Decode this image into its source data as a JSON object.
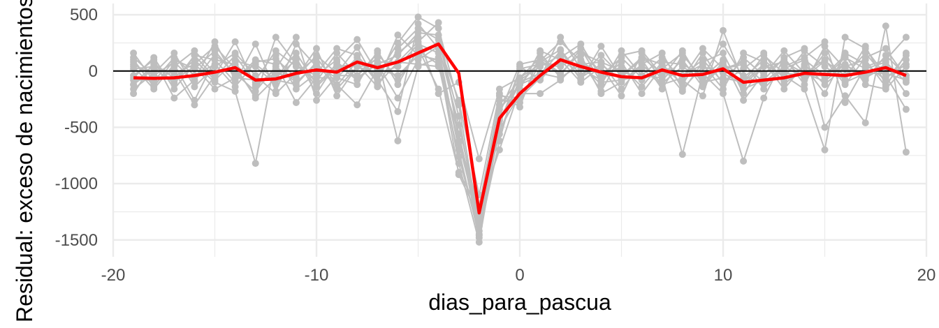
{
  "chart_data": {
    "type": "line",
    "xlabel": "dias_para_pascua",
    "ylabel": "Residual: exceso de nacimientos",
    "xlim": [
      -20,
      20
    ],
    "ylim": [
      -1650,
      600
    ],
    "x_ticks": [
      -20,
      -10,
      0,
      10,
      20
    ],
    "x_tick_labels": [
      "-20",
      "-10",
      "0",
      "10",
      "20"
    ],
    "y_ticks": [
      500,
      0,
      -500,
      -1000,
      -1500
    ],
    "y_tick_labels": [
      "500",
      "0",
      "-500",
      "-1000",
      "-1500"
    ],
    "grid": true,
    "reference_line_y": 0,
    "colors": {
      "background": "#ffffff",
      "grid": "#ebebeb",
      "years": "#bebebe",
      "mean": "#ff0000",
      "zero_line": "#000000"
    },
    "x": [
      -19,
      -18,
      -17,
      -16,
      -15,
      -14,
      -13,
      -12,
      -11,
      -10,
      -9,
      -8,
      -7,
      -6,
      -5,
      -4,
      -3,
      -2,
      -1,
      0,
      1,
      2,
      3,
      4,
      5,
      6,
      7,
      8,
      9,
      10,
      11,
      12,
      13,
      14,
      15,
      16,
      17,
      18,
      19
    ],
    "series": [
      {
        "style": "year",
        "values": [
          60,
          -40,
          80,
          -90,
          150,
          -20,
          -180,
          40,
          -100,
          60,
          -130,
          90,
          -40,
          250,
          480,
          380,
          -300,
          -1380,
          -420,
          -120,
          90,
          260,
          90,
          -40,
          120,
          -60,
          40,
          -180,
          80,
          160,
          -200,
          60,
          -90,
          40,
          -60,
          120,
          20,
          80,
          -100
        ]
      },
      {
        "style": "year",
        "values": [
          -120,
          60,
          -60,
          100,
          -80,
          90,
          40,
          -120,
          120,
          -200,
          80,
          -60,
          60,
          -240,
          100,
          220,
          -480,
          -1280,
          -560,
          -60,
          120,
          -20,
          160,
          80,
          -160,
          60,
          -110,
          40,
          -80,
          20,
          80,
          -160,
          40,
          -60,
          90,
          -40,
          160,
          -60,
          60
        ]
      },
      {
        "style": "year",
        "values": [
          160,
          -90,
          120,
          -40,
          60,
          -140,
          80,
          110,
          -60,
          140,
          -20,
          210,
          -120,
          80,
          260,
          430,
          -620,
          -1200,
          -260,
          -280,
          80,
          190,
          -40,
          140,
          -40,
          120,
          60,
          -120,
          160,
          -120,
          120,
          -40,
          180,
          -20,
          -90,
          60,
          -80,
          140,
          -40
        ]
      },
      {
        "style": "year",
        "values": [
          -60,
          120,
          -160,
          60,
          220,
          20,
          -220,
          300,
          60,
          -90,
          160,
          -40,
          160,
          -80,
          180,
          60,
          -760,
          -1450,
          -620,
          40,
          -80,
          120,
          240,
          -60,
          40,
          -140,
          80,
          60,
          -40,
          240,
          -60,
          100,
          -60,
          180,
          40,
          -80,
          220,
          -120,
          100
        ]
      },
      {
        "style": "year",
        "values": [
          40,
          -160,
          60,
          -260,
          100,
          -100,
          240,
          -180,
          240,
          40,
          -60,
          120,
          -100,
          320,
          140,
          240,
          -260,
          -1100,
          -200,
          -320,
          160,
          -60,
          60,
          -120,
          180,
          -40,
          -60,
          180,
          -120,
          80,
          -160,
          -80,
          120,
          -120,
          220,
          20,
          -40,
          60,
          -200
        ]
      },
      {
        "style": "year",
        "values": [
          -200,
          80,
          -120,
          140,
          -60,
          140,
          -120,
          -20,
          -60,
          200,
          -220,
          40,
          60,
          140,
          340,
          320,
          -560,
          -1330,
          -340,
          -120,
          -40,
          180,
          -80,
          220,
          -60,
          120,
          -20,
          -40,
          100,
          -100,
          20,
          160,
          -120,
          40,
          -200,
          160,
          60,
          -80,
          140
        ]
      },
      {
        "style": "year",
        "values": [
          120,
          -40,
          -80,
          40,
          -160,
          -60,
          -80,
          180,
          40,
          -40,
          100,
          280,
          -20,
          40,
          240,
          160,
          -820,
          -1520,
          -480,
          20,
          60,
          40,
          140,
          -200,
          -100,
          60,
          160,
          -160,
          40,
          -20,
          -120,
          40,
          80,
          -20,
          100,
          -120,
          120,
          200,
          -60
        ]
      },
      {
        "style": "year",
        "values": [
          -40,
          100,
          -240,
          -80,
          260,
          -80,
          100,
          60,
          -280,
          -60,
          -60,
          -120,
          180,
          -120,
          200,
          -160,
          -900,
          -1230,
          -700,
          -160,
          180,
          100,
          -100,
          40,
          -220,
          160,
          -80,
          100,
          -140,
          60,
          -40,
          -120,
          20,
          100,
          -40,
          60,
          -60,
          40,
          -40
        ]
      },
      {
        "style": "year",
        "values": [
          80,
          -120,
          40,
          180,
          -20,
          40,
          -240,
          -60,
          100,
          -140,
          40,
          60,
          -140,
          200,
          380,
          280,
          -400,
          -1420,
          -220,
          -240,
          -60,
          300,
          20,
          -80,
          80,
          -200,
          40,
          -40,
          60,
          -160,
          160,
          80,
          -160,
          60,
          -120,
          40,
          100,
          -140,
          160
        ]
      },
      {
        "style": "year",
        "values": [
          -160,
          -20,
          160,
          -140,
          40,
          160,
          -40,
          -200,
          -20,
          120,
          -120,
          -300,
          20,
          -40,
          140,
          100,
          -640,
          -1350,
          -380,
          60,
          100,
          -40,
          200,
          -20,
          -40,
          100,
          -160,
          140,
          -60,
          100,
          -260,
          -20,
          100,
          -80,
          160,
          -100,
          -20,
          -20,
          -80
        ]
      },
      {
        "style": "year",
        "values": [
          20,
          40,
          -20,
          60,
          -100,
          -180,
          -820,
          140,
          -160,
          -20,
          200,
          140,
          -80,
          -360,
          420,
          200,
          -700,
          -1480,
          -300,
          -80,
          40,
          140,
          -60,
          60,
          -80,
          -40,
          120,
          -80,
          -220,
          360,
          -100,
          60,
          -40,
          -160,
          -700,
          300,
          200,
          -40,
          -340
        ]
      },
      {
        "style": "year",
        "values": [
          -80,
          -80,
          0,
          -300,
          -40,
          260,
          -140,
          20,
          300,
          -260,
          -40,
          -40,
          120,
          -620,
          40,
          120,
          -920,
          -1300,
          -520,
          -200,
          -200,
          -80,
          100,
          -180,
          140,
          180,
          -40,
          -740,
          -20,
          -200,
          -800,
          -240,
          120,
          200,
          -500,
          -220,
          -460,
          400,
          -720
        ]
      },
      {
        "style": "year",
        "values": [
          100,
          -140,
          100,
          20,
          180,
          -40,
          60,
          -80,
          -120,
          80,
          -160,
          40,
          -20,
          160,
          300,
          -200,
          -100,
          -780,
          -160,
          -60,
          60,
          60,
          200,
          -100,
          -80,
          20,
          -120,
          -60,
          200,
          20,
          60,
          -100,
          40,
          120,
          260,
          -280,
          40,
          100,
          300
        ]
      },
      {
        "style": "year",
        "values": [
          -120,
          20,
          -100,
          140,
          100,
          60,
          -100,
          -60,
          160,
          -120,
          60,
          -80,
          80,
          80,
          60,
          40,
          -560,
          -1460,
          -440,
          -100,
          -20,
          -60,
          60,
          80,
          0,
          -80,
          20,
          160,
          -100,
          -60,
          -100,
          140,
          -20,
          -40,
          -40,
          140,
          -120,
          -160,
          40
        ]
      },
      {
        "style": "mean",
        "values": [
          -60,
          -65,
          -60,
          -40,
          -10,
          30,
          -80,
          -70,
          -20,
          10,
          -10,
          80,
          30,
          80,
          160,
          240,
          -20,
          -1260,
          -420,
          -200,
          -40,
          100,
          40,
          -10,
          -50,
          -60,
          10,
          -40,
          -30,
          20,
          -100,
          -80,
          -60,
          -20,
          -30,
          -40,
          -10,
          30,
          -40
        ]
      }
    ]
  }
}
